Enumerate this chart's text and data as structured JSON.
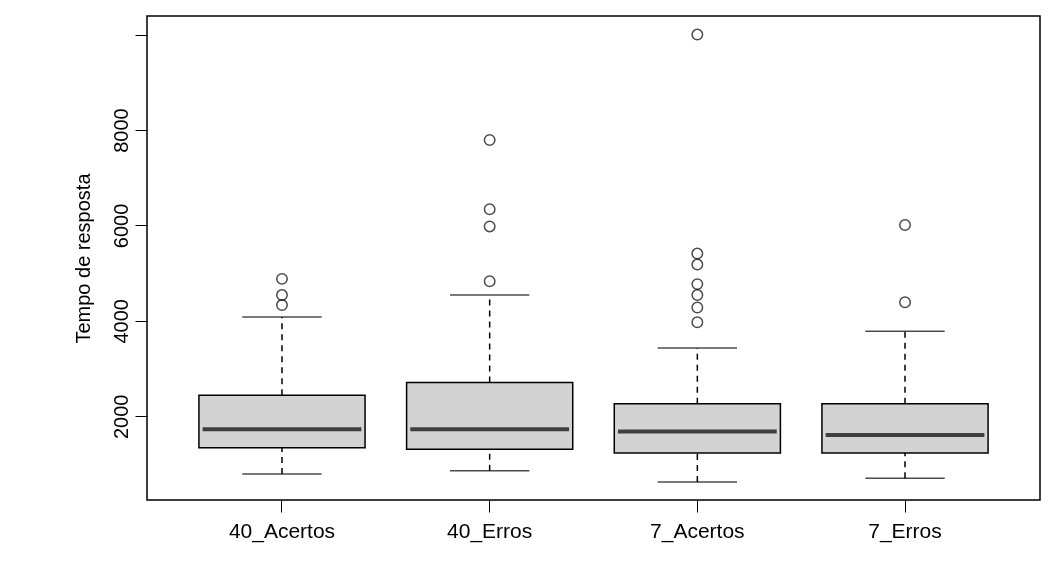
{
  "chart_data": {
    "type": "box",
    "ylabel": "Tempo de resposta",
    "categories": [
      "40_Acertos",
      "40_Erros",
      "7_Acertos",
      "7_Erros"
    ],
    "color": "#d3d3d3",
    "boxes": [
      {
        "low": 790,
        "q1": 1340,
        "median": 1730,
        "q3": 2440,
        "high": 4080,
        "outliers": [
          4330,
          4540,
          4880
        ]
      },
      {
        "low": 860,
        "q1": 1310,
        "median": 1730,
        "q3": 2710,
        "high": 4540,
        "outliers": [
          4830,
          5980,
          6340,
          7790
        ]
      },
      {
        "low": 620,
        "q1": 1230,
        "median": 1680,
        "q3": 2260,
        "high": 3430,
        "outliers": [
          3970,
          4280,
          4540,
          4770,
          5180,
          5410,
          10000
        ]
      },
      {
        "low": 700,
        "q1": 1230,
        "median": 1610,
        "q3": 2260,
        "high": 3780,
        "outliers": [
          4390,
          6010
        ]
      }
    ],
    "ylim": [
      245,
      10390
    ],
    "yticks": [
      2000,
      4000,
      6000,
      8000,
      {
        "value": 10000,
        "label": null
      }
    ]
  }
}
